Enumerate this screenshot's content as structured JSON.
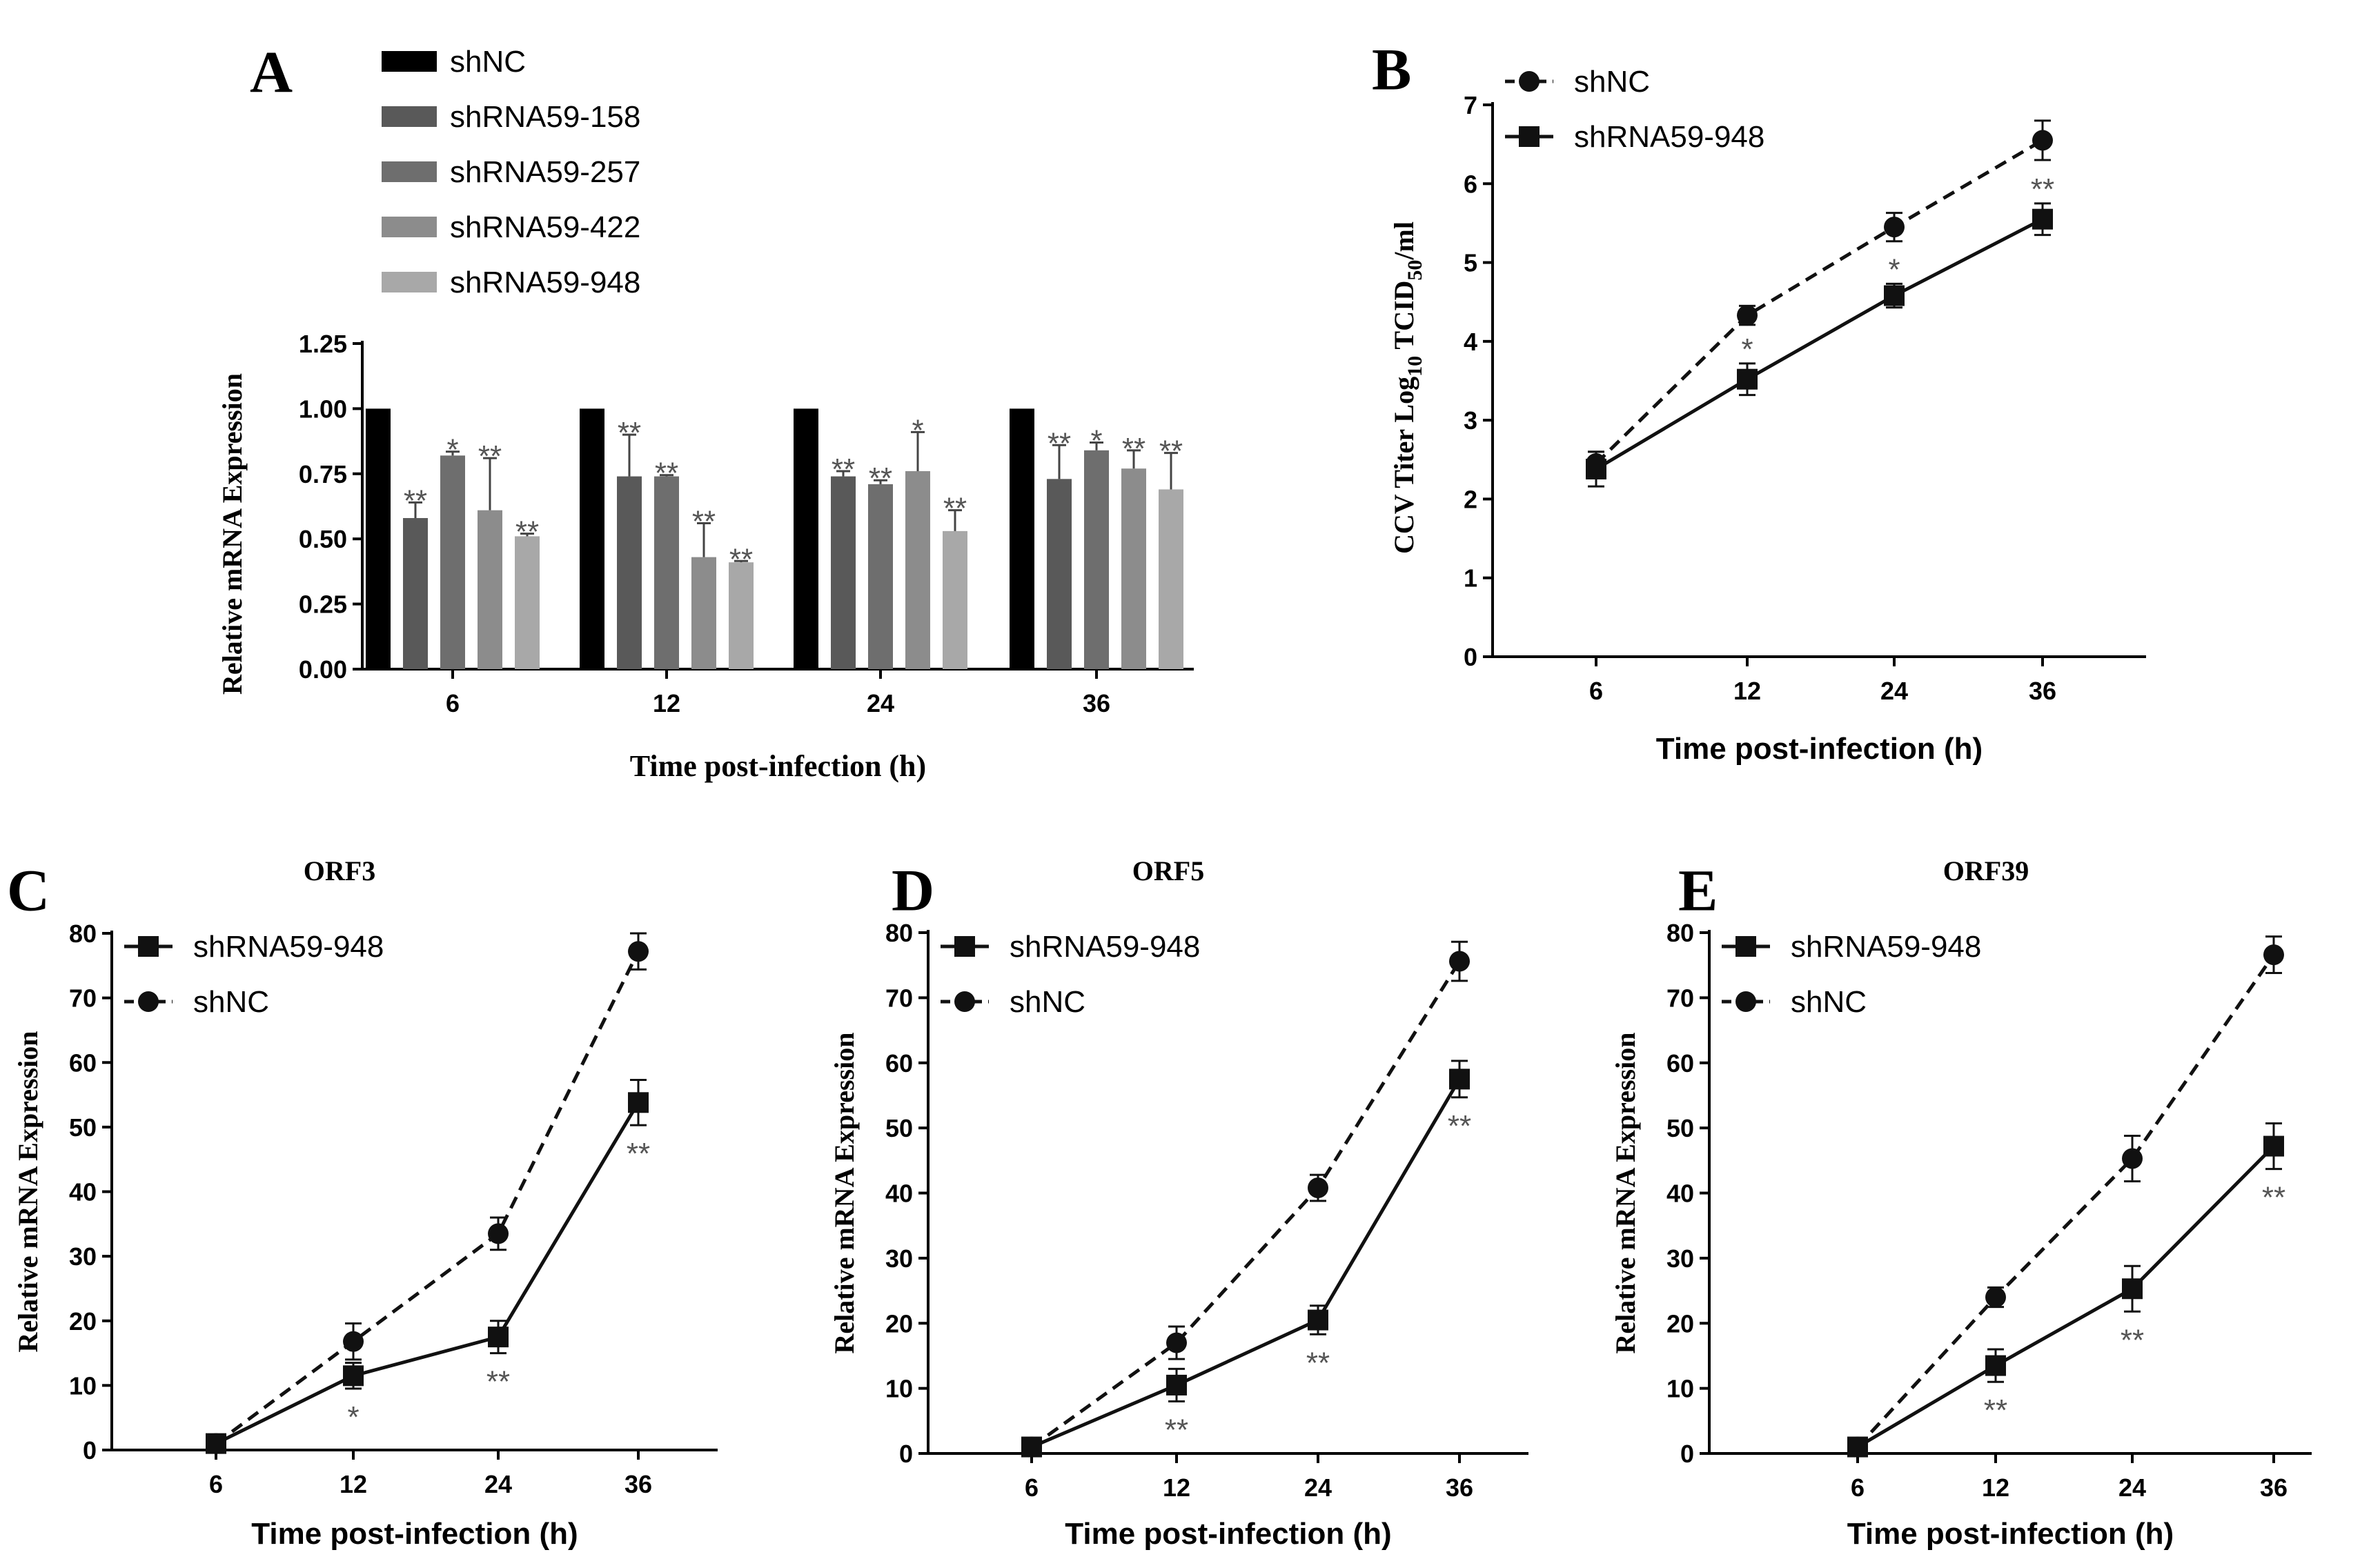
{
  "chart_data": [
    {
      "panel": "A",
      "type": "bar",
      "title": "",
      "xlabel": "Time post-infection (h)",
      "ylabel": "Relative mRNA Expression",
      "ylim": [
        0,
        1.25
      ],
      "yticks": [
        "0.00",
        "0.25",
        "0.50",
        "0.75",
        "1.00",
        "1.25"
      ],
      "categories": [
        "6",
        "12",
        "24",
        "36"
      ],
      "legend_position": "top",
      "series": [
        {
          "name": "shNC",
          "color": "#000000",
          "values": [
            1.0,
            1.0,
            1.0,
            1.0
          ],
          "errors": [
            0,
            0,
            0,
            0
          ],
          "stars": [
            "",
            "",
            "",
            ""
          ]
        },
        {
          "name": "shRNA59-158",
          "color": "#595959",
          "values": [
            0.58,
            0.74,
            0.74,
            0.73
          ],
          "errors": [
            0.06,
            0.16,
            0.02,
            0.13
          ],
          "stars": [
            "**",
            "**",
            "**",
            "**"
          ]
        },
        {
          "name": "shRNA59-257",
          "color": "#6e6e6e",
          "values": [
            0.82,
            0.74,
            0.71,
            0.84
          ],
          "errors": [
            0.015,
            0.005,
            0.015,
            0.03
          ],
          "stars": [
            "*",
            "**",
            "**",
            "*"
          ]
        },
        {
          "name": "shRNA59-422",
          "color": "#8c8c8c",
          "values": [
            0.61,
            0.43,
            0.76,
            0.77
          ],
          "errors": [
            0.2,
            0.13,
            0.15,
            0.07
          ],
          "stars": [
            "**",
            "**",
            "*",
            "**"
          ]
        },
        {
          "name": "shRNA59-948",
          "color": "#a8a8a8",
          "values": [
            0.51,
            0.41,
            0.53,
            0.69
          ],
          "errors": [
            0.01,
            0.005,
            0.08,
            0.14
          ],
          "stars": [
            "**",
            "**",
            "**",
            "**"
          ]
        }
      ]
    },
    {
      "panel": "B",
      "type": "line",
      "title": "",
      "xlabel": "Time post-infection (h)",
      "ylabel": "CCV Titer Log",
      "ylabel_sub": "10",
      "ylabel_tail": " TCID",
      "ylabel_sub2": "50",
      "ylabel_end": "/ml",
      "ylim": [
        0,
        7
      ],
      "yticks": [
        "0",
        "1",
        "2",
        "3",
        "4",
        "5",
        "6",
        "7"
      ],
      "categories": [
        "6",
        "12",
        "24",
        "36"
      ],
      "legend_position": "top-left",
      "series": [
        {
          "name": "shNC",
          "marker": "circle",
          "dashed": true,
          "values": [
            2.45,
            4.33,
            5.45,
            6.55
          ],
          "errors": [
            0.15,
            0.12,
            0.18,
            0.25
          ]
        },
        {
          "name": "shRNA59-948",
          "marker": "square",
          "dashed": false,
          "values": [
            2.38,
            3.52,
            4.58,
            5.55
          ],
          "errors": [
            0.22,
            0.2,
            0.15,
            0.2
          ]
        }
      ],
      "annotations": [
        "",
        "*",
        "*",
        "**"
      ]
    },
    {
      "panel": "C",
      "type": "line",
      "title": "ORF3",
      "xlabel": "Time post-infection (h)",
      "ylabel": "Relative mRNA Expression",
      "ylim": [
        0,
        80
      ],
      "yticks": [
        "0",
        "10",
        "20",
        "30",
        "40",
        "50",
        "60",
        "70",
        "80"
      ],
      "categories": [
        "6",
        "12",
        "24",
        "36"
      ],
      "legend_position": "top-left",
      "series": [
        {
          "name": "shRNA59-948",
          "marker": "square",
          "dashed": false,
          "values": [
            1,
            11.5,
            17.5,
            53.8
          ],
          "errors": [
            0.3,
            2,
            2.5,
            3.5
          ]
        },
        {
          "name": "shNC",
          "marker": "circle",
          "dashed": true,
          "values": [
            1,
            16.8,
            33.5,
            77.2
          ],
          "errors": [
            0.3,
            2.8,
            2.5,
            2.8
          ]
        }
      ],
      "annotations": [
        "",
        "*",
        "**",
        "**"
      ]
    },
    {
      "panel": "D",
      "type": "line",
      "title": "ORF5",
      "xlabel": "Time post-infection (h)",
      "ylabel": "Relative mRNA Expression",
      "ylim": [
        0,
        80
      ],
      "yticks": [
        "0",
        "10",
        "20",
        "30",
        "40",
        "50",
        "60",
        "70",
        "80"
      ],
      "categories": [
        "6",
        "12",
        "24",
        "36"
      ],
      "legend_position": "top-left",
      "series": [
        {
          "name": "shRNA59-948",
          "marker": "square",
          "dashed": false,
          "values": [
            1,
            10.5,
            20.5,
            57.5
          ],
          "errors": [
            0.3,
            2.5,
            2.2,
            2.8
          ]
        },
        {
          "name": "shNC",
          "marker": "circle",
          "dashed": true,
          "values": [
            1,
            17,
            40.8,
            75.6
          ],
          "errors": [
            0.3,
            2.5,
            2,
            3
          ]
        }
      ],
      "annotations": [
        "",
        "**",
        "**",
        "**"
      ]
    },
    {
      "panel": "E",
      "type": "line",
      "title": "ORF39",
      "xlabel": "Time post-infection (h)",
      "ylabel": "Relative mRNA Expression",
      "ylim": [
        0,
        80
      ],
      "yticks": [
        "0",
        "10",
        "20",
        "30",
        "40",
        "50",
        "60",
        "70",
        "80"
      ],
      "categories": [
        "6",
        "12",
        "24",
        "36"
      ],
      "legend_position": "top-left",
      "series": [
        {
          "name": "shRNA59-948",
          "marker": "square",
          "dashed": false,
          "values": [
            1,
            13.5,
            25.3,
            47.2
          ],
          "errors": [
            0.3,
            2.5,
            3.5,
            3.5
          ]
        },
        {
          "name": "shNC",
          "marker": "circle",
          "dashed": true,
          "values": [
            1,
            24,
            45.3,
            76.6
          ],
          "errors": [
            0.3,
            1.5,
            3.5,
            2.8
          ]
        }
      ],
      "annotations": [
        "",
        "**",
        "**",
        "**"
      ]
    }
  ],
  "panel_labels": [
    "A",
    "B",
    "C",
    "D",
    "E"
  ]
}
